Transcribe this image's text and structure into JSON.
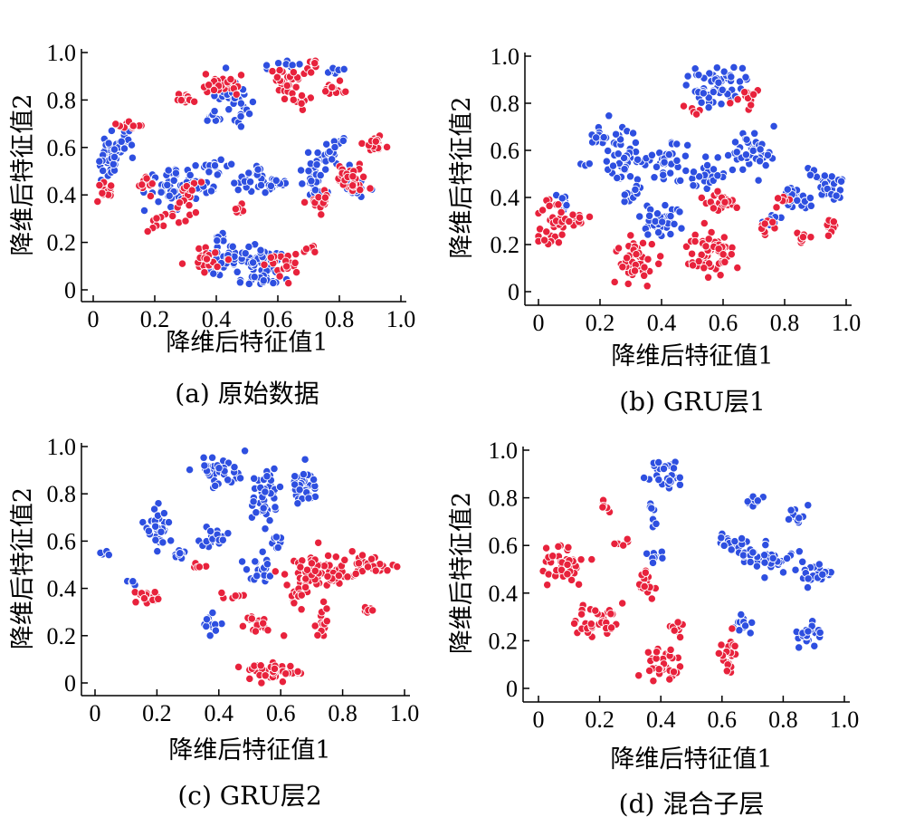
{
  "colors": {
    "blue": "#2e4fe0",
    "red": "#e8223c",
    "axis": "#000000",
    "marker_edge": "#ffffff"
  },
  "chart_data": [
    {
      "type": "scatter",
      "caption": "(a) 原始数据",
      "xlabel": "降维后特征值1",
      "ylabel": "降维后特征值2",
      "xlim": [
        0,
        1.0
      ],
      "ylim": [
        0,
        1.0
      ],
      "xticks": [
        "0",
        "0.2",
        "0.4",
        "0.6",
        "0.8",
        "1.0"
      ],
      "yticks": [
        "0",
        "0.2",
        "0.4",
        "0.6",
        "0.8",
        "1.0"
      ],
      "grid": false,
      "series": [
        {
          "color": "blue",
          "clusters": [
            [
              0.05,
              0.55,
              0.03,
              0.07,
              35
            ],
            [
              0.1,
              0.62,
              0.03,
              0.04,
              15
            ],
            [
              0.25,
              0.45,
              0.06,
              0.06,
              40
            ],
            [
              0.4,
              0.52,
              0.04,
              0.02,
              15
            ],
            [
              0.36,
              0.44,
              0.04,
              0.04,
              20
            ],
            [
              0.45,
              0.82,
              0.05,
              0.06,
              40
            ],
            [
              0.38,
              0.72,
              0.02,
              0.02,
              8
            ],
            [
              0.52,
              0.45,
              0.04,
              0.04,
              25
            ],
            [
              0.6,
              0.45,
              0.03,
              0.02,
              12
            ],
            [
              0.5,
              0.12,
              0.1,
              0.04,
              70
            ],
            [
              0.55,
              0.04,
              0.06,
              0.02,
              20
            ],
            [
              0.42,
              0.22,
              0.03,
              0.015,
              8
            ],
            [
              0.72,
              0.48,
              0.04,
              0.07,
              30
            ],
            [
              0.78,
              0.58,
              0.04,
              0.04,
              20
            ],
            [
              0.86,
              0.42,
              0.03,
              0.03,
              12
            ],
            [
              0.63,
              0.95,
              0.04,
              0.02,
              8
            ],
            [
              0.77,
              0.92,
              0.03,
              0.02,
              6
            ]
          ]
        },
        {
          "color": "red",
          "clusters": [
            [
              0.04,
              0.42,
              0.02,
              0.03,
              12
            ],
            [
              0.12,
              0.7,
              0.03,
              0.02,
              12
            ],
            [
              0.18,
              0.45,
              0.02,
              0.03,
              10
            ],
            [
              0.31,
              0.42,
              0.03,
              0.03,
              15
            ],
            [
              0.28,
              0.32,
              0.03,
              0.03,
              12
            ],
            [
              0.2,
              0.28,
              0.02,
              0.03,
              8
            ],
            [
              0.3,
              0.8,
              0.03,
              0.02,
              12
            ],
            [
              0.42,
              0.87,
              0.04,
              0.03,
              25
            ],
            [
              0.62,
              0.88,
              0.04,
              0.05,
              25
            ],
            [
              0.72,
              0.95,
              0.02,
              0.02,
              8
            ],
            [
              0.78,
              0.85,
              0.03,
              0.03,
              12
            ],
            [
              0.67,
              0.8,
              0.03,
              0.02,
              10
            ],
            [
              0.91,
              0.61,
              0.03,
              0.03,
              20
            ],
            [
              0.84,
              0.46,
              0.04,
              0.05,
              30
            ],
            [
              0.74,
              0.38,
              0.03,
              0.03,
              14
            ],
            [
              0.38,
              0.12,
              0.05,
              0.04,
              20
            ],
            [
              0.6,
              0.1,
              0.05,
              0.05,
              20
            ],
            [
              0.7,
              0.18,
              0.02,
              0.02,
              6
            ],
            [
              0.48,
              0.34,
              0.02,
              0.02,
              6
            ]
          ]
        }
      ]
    },
    {
      "type": "scatter",
      "caption": "(b) GRU层1",
      "xlabel": "降维后特征值1",
      "ylabel": "降维后特征值2",
      "xlim": [
        0,
        1.0
      ],
      "ylim": [
        0,
        1.0
      ],
      "xticks": [
        "0",
        "0.2",
        "0.4",
        "0.6",
        "0.8",
        "1.0"
      ],
      "yticks": [
        "0",
        "0.2",
        "0.4",
        "0.6",
        "0.8",
        "1.0"
      ],
      "grid": false,
      "series": [
        {
          "color": "blue",
          "clusters": [
            [
              0.58,
              0.88,
              0.06,
              0.06,
              60
            ],
            [
              0.28,
              0.57,
              0.07,
              0.08,
              55
            ],
            [
              0.2,
              0.65,
              0.03,
              0.02,
              10
            ],
            [
              0.4,
              0.3,
              0.05,
              0.05,
              35
            ],
            [
              0.43,
              0.55,
              0.04,
              0.07,
              25
            ],
            [
              0.55,
              0.5,
              0.04,
              0.05,
              25
            ],
            [
              0.68,
              0.6,
              0.06,
              0.06,
              45
            ],
            [
              0.83,
              0.4,
              0.04,
              0.05,
              25
            ],
            [
              0.95,
              0.45,
              0.03,
              0.05,
              25
            ],
            [
              0.9,
              0.5,
              0.02,
              0.03,
              10
            ],
            [
              0.3,
              0.4,
              0.03,
              0.03,
              12
            ],
            [
              0.75,
              0.3,
              0.02,
              0.02,
              8
            ],
            [
              0.08,
              0.38,
              0.02,
              0.03,
              8
            ]
          ]
        },
        {
          "color": "red",
          "clusters": [
            [
              0.05,
              0.3,
              0.03,
              0.08,
              30
            ],
            [
              0.12,
              0.3,
              0.03,
              0.03,
              12
            ],
            [
              0.32,
              0.13,
              0.05,
              0.06,
              45
            ],
            [
              0.56,
              0.17,
              0.06,
              0.07,
              60
            ],
            [
              0.6,
              0.38,
              0.04,
              0.04,
              25
            ],
            [
              0.74,
              0.28,
              0.02,
              0.03,
              10
            ],
            [
              0.87,
              0.22,
              0.02,
              0.02,
              8
            ],
            [
              0.95,
              0.28,
              0.02,
              0.03,
              10
            ],
            [
              0.67,
              0.82,
              0.03,
              0.04,
              12
            ],
            [
              0.5,
              0.78,
              0.02,
              0.02,
              5
            ],
            [
              0.8,
              0.38,
              0.02,
              0.02,
              6
            ]
          ]
        }
      ]
    },
    {
      "type": "scatter",
      "caption": "(c) GRU层2",
      "xlabel": "降维后特征值1",
      "ylabel": "降维后特征值2",
      "xlim": [
        0,
        1.0
      ],
      "ylim": [
        0,
        1.0
      ],
      "xticks": [
        "0",
        "0.2",
        "0.4",
        "0.6",
        "0.8",
        "1.0"
      ],
      "yticks": [
        "0",
        "0.2",
        "0.4",
        "0.6",
        "0.8",
        "1.0"
      ],
      "grid": false,
      "series": [
        {
          "color": "blue",
          "clusters": [
            [
              0.4,
              0.9,
              0.05,
              0.05,
              40
            ],
            [
              0.55,
              0.8,
              0.04,
              0.08,
              40
            ],
            [
              0.68,
              0.82,
              0.04,
              0.06,
              35
            ],
            [
              0.2,
              0.65,
              0.03,
              0.07,
              30
            ],
            [
              0.38,
              0.62,
              0.03,
              0.04,
              18
            ],
            [
              0.27,
              0.55,
              0.02,
              0.02,
              8
            ],
            [
              0.53,
              0.48,
              0.04,
              0.04,
              20
            ],
            [
              0.37,
              0.25,
              0.02,
              0.03,
              12
            ],
            [
              0.03,
              0.55,
              0.01,
              0.01,
              5
            ],
            [
              0.12,
              0.42,
              0.01,
              0.01,
              5
            ],
            [
              0.6,
              0.6,
              0.02,
              0.03,
              10
            ]
          ]
        },
        {
          "color": "red",
          "clusters": [
            [
              0.18,
              0.36,
              0.04,
              0.02,
              20
            ],
            [
              0.52,
              0.25,
              0.04,
              0.03,
              18
            ],
            [
              0.58,
              0.05,
              0.06,
              0.03,
              40
            ],
            [
              0.73,
              0.46,
              0.08,
              0.06,
              70
            ],
            [
              0.9,
              0.5,
              0.05,
              0.03,
              25
            ],
            [
              0.73,
              0.25,
              0.02,
              0.05,
              15
            ],
            [
              0.65,
              0.36,
              0.03,
              0.04,
              15
            ],
            [
              0.88,
              0.31,
              0.02,
              0.02,
              8
            ],
            [
              0.33,
              0.48,
              0.02,
              0.02,
              6
            ],
            [
              0.45,
              0.37,
              0.02,
              0.02,
              6
            ]
          ]
        }
      ]
    },
    {
      "type": "scatter",
      "caption": "(d) 混合子层",
      "xlabel": "降维后特征值1",
      "ylabel": "降维后特征值2",
      "xlim": [
        0,
        1.0
      ],
      "ylim": [
        0,
        1.0
      ],
      "xticks": [
        "0",
        "0.2",
        "0.4",
        "0.6",
        "0.8",
        "1.0"
      ],
      "yticks": [
        "0",
        "0.2",
        "0.4",
        "0.6",
        "0.8",
        "1.0"
      ],
      "grid": false,
      "series": [
        {
          "color": "blue",
          "clusters": [
            [
              0.42,
              0.9,
              0.04,
              0.05,
              30
            ],
            [
              0.37,
              0.73,
              0.01,
              0.04,
              8
            ],
            [
              0.63,
              0.6,
              0.03,
              0.04,
              20
            ],
            [
              0.75,
              0.55,
              0.06,
              0.05,
              45
            ],
            [
              0.9,
              0.48,
              0.05,
              0.03,
              25
            ],
            [
              0.7,
              0.78,
              0.02,
              0.02,
              10
            ],
            [
              0.84,
              0.73,
              0.02,
              0.03,
              10
            ],
            [
              0.88,
              0.22,
              0.03,
              0.04,
              22
            ],
            [
              0.68,
              0.28,
              0.03,
              0.04,
              12
            ],
            [
              0.38,
              0.55,
              0.02,
              0.03,
              8
            ]
          ]
        },
        {
          "color": "red",
          "clusters": [
            [
              0.08,
              0.52,
              0.05,
              0.06,
              55
            ],
            [
              0.2,
              0.28,
              0.05,
              0.04,
              35
            ],
            [
              0.35,
              0.45,
              0.02,
              0.05,
              18
            ],
            [
              0.4,
              0.1,
              0.04,
              0.05,
              35
            ],
            [
              0.45,
              0.25,
              0.02,
              0.02,
              10
            ],
            [
              0.62,
              0.15,
              0.02,
              0.05,
              20
            ],
            [
              0.22,
              0.78,
              0.02,
              0.03,
              8
            ],
            [
              0.28,
              0.6,
              0.02,
              0.02,
              6
            ]
          ]
        }
      ]
    }
  ]
}
